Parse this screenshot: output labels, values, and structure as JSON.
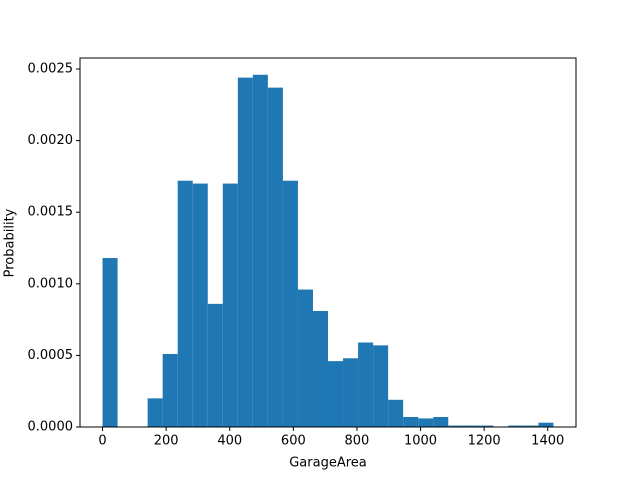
{
  "chart_data": {
    "type": "histogram",
    "xlabel": "GarageArea",
    "ylabel": "Probability",
    "color": "#1f77b4",
    "bins": [
      0,
      47.27,
      94.53,
      141.8,
      189.07,
      236.33,
      283.6,
      330.87,
      378.13,
      425.4,
      472.67,
      519.93,
      567.2,
      614.47,
      661.73,
      709,
      756.27,
      803.53,
      850.8,
      898.07,
      945.33,
      992.6,
      1039.87,
      1087.13,
      1134.4,
      1181.67,
      1228.93,
      1276.2,
      1323.47,
      1370.73,
      1418
    ],
    "counts": [
      0.00118,
      0,
      0,
      0.0002,
      0.00051,
      0.00172,
      0.0017,
      0.00086,
      0.0017,
      0.00244,
      0.00246,
      0.00237,
      0.00172,
      0.00096,
      0.00081,
      0.00046,
      0.00048,
      0.00059,
      0.00057,
      0.00019,
      7e-05,
      6e-05,
      7e-05,
      1e-05,
      1e-05,
      1e-05,
      0,
      1e-05,
      1e-05,
      3e-05
    ],
    "xlim": [
      -70.9,
      1488.9
    ],
    "xticks": [
      0,
      200,
      400,
      600,
      800,
      1000,
      1200,
      1400
    ],
    "ylim": [
      0,
      0.002577
    ],
    "yticks": [
      {
        "value": 0,
        "label": "0.0000"
      },
      {
        "value": 0.0005,
        "label": "0.0005"
      },
      {
        "value": 0.001,
        "label": "0.0010"
      },
      {
        "value": 0.0015,
        "label": "0.0015"
      },
      {
        "value": 0.002,
        "label": "0.0020"
      },
      {
        "value": 0.0025,
        "label": "0.0025"
      }
    ]
  }
}
